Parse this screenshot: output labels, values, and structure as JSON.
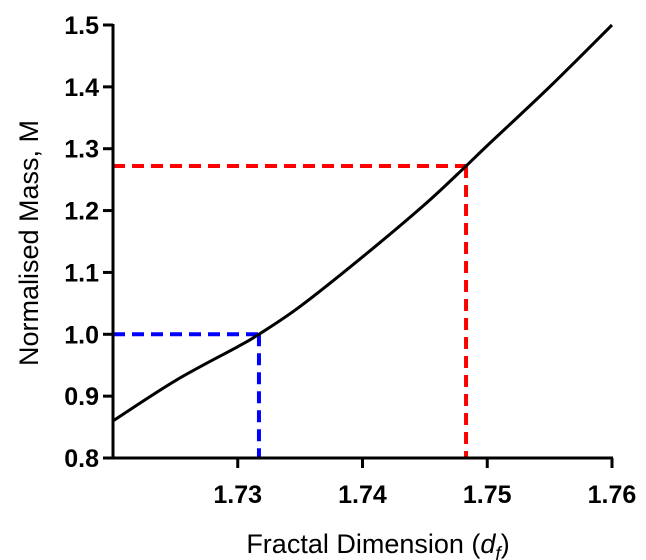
{
  "chart_data": {
    "type": "line",
    "title": "",
    "xlabel": "Fractal Dimension (",
    "xlabel_symbol": "d",
    "xlabel_subscript": "f",
    "xlabel_suffix": ")",
    "ylabel": "Normalised Mass, M",
    "xlim": [
      1.72,
      1.76
    ],
    "ylim": [
      0.8,
      1.5
    ],
    "x_ticks": [
      1.73,
      1.74,
      1.75,
      1.76
    ],
    "x_tick_labels": [
      "1.73",
      "1.74",
      "1.75",
      "1.76"
    ],
    "y_ticks": [
      0.8,
      0.9,
      1.0,
      1.1,
      1.2,
      1.3,
      1.4,
      1.5
    ],
    "y_tick_labels": [
      "0.8",
      "0.9",
      "1.0",
      "1.1",
      "1.2",
      "1.3",
      "1.4",
      "1.5"
    ],
    "grid": false,
    "legend": "none",
    "series": [
      {
        "color": "#000000",
        "x": [
          1.72,
          1.725,
          1.73,
          1.7317,
          1.735,
          1.74,
          1.745,
          1.7483,
          1.75,
          1.755,
          1.76
        ],
        "y": [
          0.86,
          0.925,
          0.98,
          1.0,
          1.045,
          1.125,
          1.21,
          1.272,
          1.305,
          1.4,
          1.5
        ]
      }
    ],
    "reference_lines": [
      {
        "color": "#0000ff",
        "x": 1.7317,
        "y": 1.0
      },
      {
        "color": "#ff0000",
        "x": 1.7483,
        "y": 1.272
      }
    ]
  }
}
